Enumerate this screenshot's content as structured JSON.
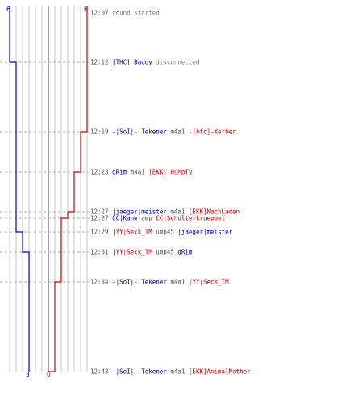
{
  "colors": {
    "blue": "#0000cc",
    "red": "#cc0000",
    "grid": "#c8c8c8",
    "center": "#808080",
    "time": "#555555",
    "note": "#808080"
  },
  "scores": {
    "blue_start": "6",
    "red_start": "6",
    "blue_end": "3",
    "red_end": "0"
  },
  "events": [
    {
      "time": "12:07",
      "parts": [
        {
          "text": "round started",
          "color": "gray"
        }
      ]
    },
    {
      "time": "12:12",
      "parts": [
        {
          "text": "[THC] Baddy",
          "color": "blue"
        },
        {
          "text": " disconnected",
          "color": "gray"
        }
      ]
    },
    {
      "time": "12:19",
      "parts": [
        {
          "text": "-|SoI|- Tekener",
          "color": "blue"
        },
        {
          "text": " m4a1 ",
          "color": "t"
        },
        {
          "text": "-[bfc]-Xerber",
          "color": "red"
        }
      ]
    },
    {
      "time": "12:23",
      "parts": [
        {
          "text": "gRim",
          "color": "blue"
        },
        {
          "text": " m4a1 ",
          "color": "t"
        },
        {
          "text": "[EKK] HuMpTy",
          "color": "red"
        }
      ]
    },
    {
      "time": "12:27",
      "parts": [
        {
          "text": "|jaeger|meister",
          "color": "blue"
        },
        {
          "text": " m4a1 ",
          "color": "t"
        },
        {
          "text": "[EKK]NachLaden",
          "color": "red"
        }
      ]
    },
    {
      "time": "12:27",
      "parts": [
        {
          "text": "CC|Kane",
          "color": "blue"
        },
        {
          "text": " awp ",
          "color": "t"
        },
        {
          "text": "CC|Schulterkrueppel",
          "color": "red"
        }
      ]
    },
    {
      "time": "12:29",
      "parts": [
        {
          "text": "|YY|Seck_TM",
          "color": "red"
        },
        {
          "text": " ump45 ",
          "color": "t"
        },
        {
          "text": "|jaeger|meister",
          "color": "blue"
        }
      ]
    },
    {
      "time": "12:31",
      "parts": [
        {
          "text": "|YY|Seck_TM",
          "color": "red"
        },
        {
          "text": " ump45 ",
          "color": "t"
        },
        {
          "text": "gRim",
          "color": "blue"
        }
      ]
    },
    {
      "time": "12:34",
      "parts": [
        {
          "text": "-|SoI|- Tekener",
          "color": "blue"
        },
        {
          "text": " m4a1 ",
          "color": "t"
        },
        {
          "text": "|YY|Seck_TM",
          "color": "red"
        }
      ]
    },
    {
      "time": "12:43",
      "parts": [
        {
          "text": "-|SoI|- Tekener",
          "color": "blue"
        },
        {
          "text": " m4a1 ",
          "color": "t"
        },
        {
          "text": "[EKK]AnimalMother",
          "color": "red"
        }
      ]
    }
  ],
  "blue_alive_after_event": [
    6,
    5,
    5,
    5,
    5,
    5,
    4,
    3,
    3,
    3
  ],
  "red_alive_after_event": [
    6,
    6,
    5,
    4,
    3,
    2,
    2,
    2,
    1,
    0
  ]
}
